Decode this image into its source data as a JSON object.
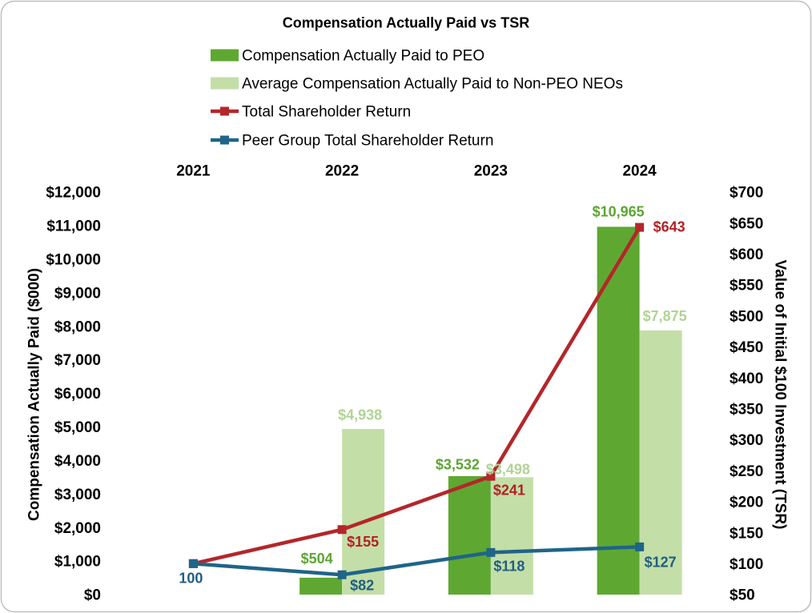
{
  "chart_data": {
    "type": "bar",
    "title": "Compensation Actually Paid vs TSR",
    "categories": [
      "2021",
      "2022",
      "2023",
      "2024"
    ],
    "series": [
      {
        "name": "Compensation Actually Paid to PEO",
        "color": "#5EA832",
        "label_color": "#5CA531",
        "values": [
          null,
          504,
          3532,
          10965
        ],
        "labels": [
          null,
          "$504",
          "$3,532",
          "$10,965"
        ]
      },
      {
        "name": "Average Compensation Actually Paid to Non-PEO NEOs",
        "color": "#C4DEA8",
        "label_color": "#B0D494",
        "values": [
          null,
          4938,
          3498,
          7875
        ],
        "labels": [
          null,
          "$4,938",
          "$3,498",
          "$7,875"
        ]
      }
    ],
    "line_series": [
      {
        "name": "Total Shareholder Return",
        "color": "#B4262A",
        "label_color": "#B02226",
        "values": [
          100,
          155,
          241,
          643
        ],
        "labels": [
          null,
          "$155",
          "$241",
          "$643"
        ]
      },
      {
        "name": "Peer Group Total Shareholder Return",
        "color": "#1F6489",
        "label_color": "#1F5F82",
        "values": [
          100,
          82,
          118,
          127
        ],
        "labels": [
          "100",
          "$82",
          "$118",
          "$127"
        ]
      }
    ],
    "ylabel": "Compensation Actually Paid ($000)",
    "ylim": [
      0,
      12000
    ],
    "yticks": [
      0,
      1000,
      2000,
      3000,
      4000,
      5000,
      6000,
      7000,
      8000,
      9000,
      10000,
      11000,
      12000
    ],
    "ytick_labels": [
      "$0",
      "$1,000",
      "$2,000",
      "$3,000",
      "$4,000",
      "$5,000",
      "$6,000",
      "$7,000",
      "$8,000",
      "$9,000",
      "$10,000",
      "$11,000",
      "$12,000"
    ],
    "y2label": "Value of Initial $100 Investment (TSR)",
    "y2lim": [
      50,
      700
    ],
    "y2ticks": [
      50,
      100,
      150,
      200,
      250,
      300,
      350,
      400,
      450,
      500,
      550,
      600,
      650,
      700
    ],
    "y2tick_labels": [
      "$50",
      "$100",
      "$150",
      "$200",
      "$250",
      "$300",
      "$350",
      "$400",
      "$450",
      "$500",
      "$550",
      "$600",
      "$650",
      "$700"
    ],
    "grid": false
  }
}
